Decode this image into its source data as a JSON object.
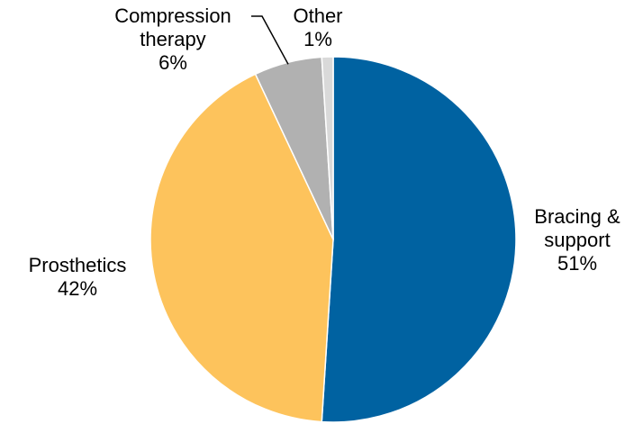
{
  "chart_data": {
    "type": "pie",
    "start_angle_deg": 0,
    "direction": "clockwise",
    "slices": [
      {
        "category": "Bracing & support",
        "value": 51,
        "value_label": "51%",
        "color": "#0062A1",
        "label_lines": [
          "Bracing &",
          "support",
          "51%"
        ]
      },
      {
        "category": "Prosthetics",
        "value": 42,
        "value_label": "42%",
        "color": "#FDC35C",
        "label_lines": [
          "Prosthetics",
          "42%"
        ]
      },
      {
        "category": "Compression therapy",
        "value": 6,
        "value_label": "6%",
        "color": "#B1B1B1",
        "label_lines": [
          "Compression",
          "therapy",
          "6%"
        ]
      },
      {
        "category": "Other",
        "value": 1,
        "value_label": "1%",
        "color": "#D9D9D9",
        "label_lines": [
          "Other",
          "1%"
        ]
      }
    ],
    "colors": {
      "slice_border": "#FFFFFF",
      "leader_line": "#000000"
    }
  }
}
